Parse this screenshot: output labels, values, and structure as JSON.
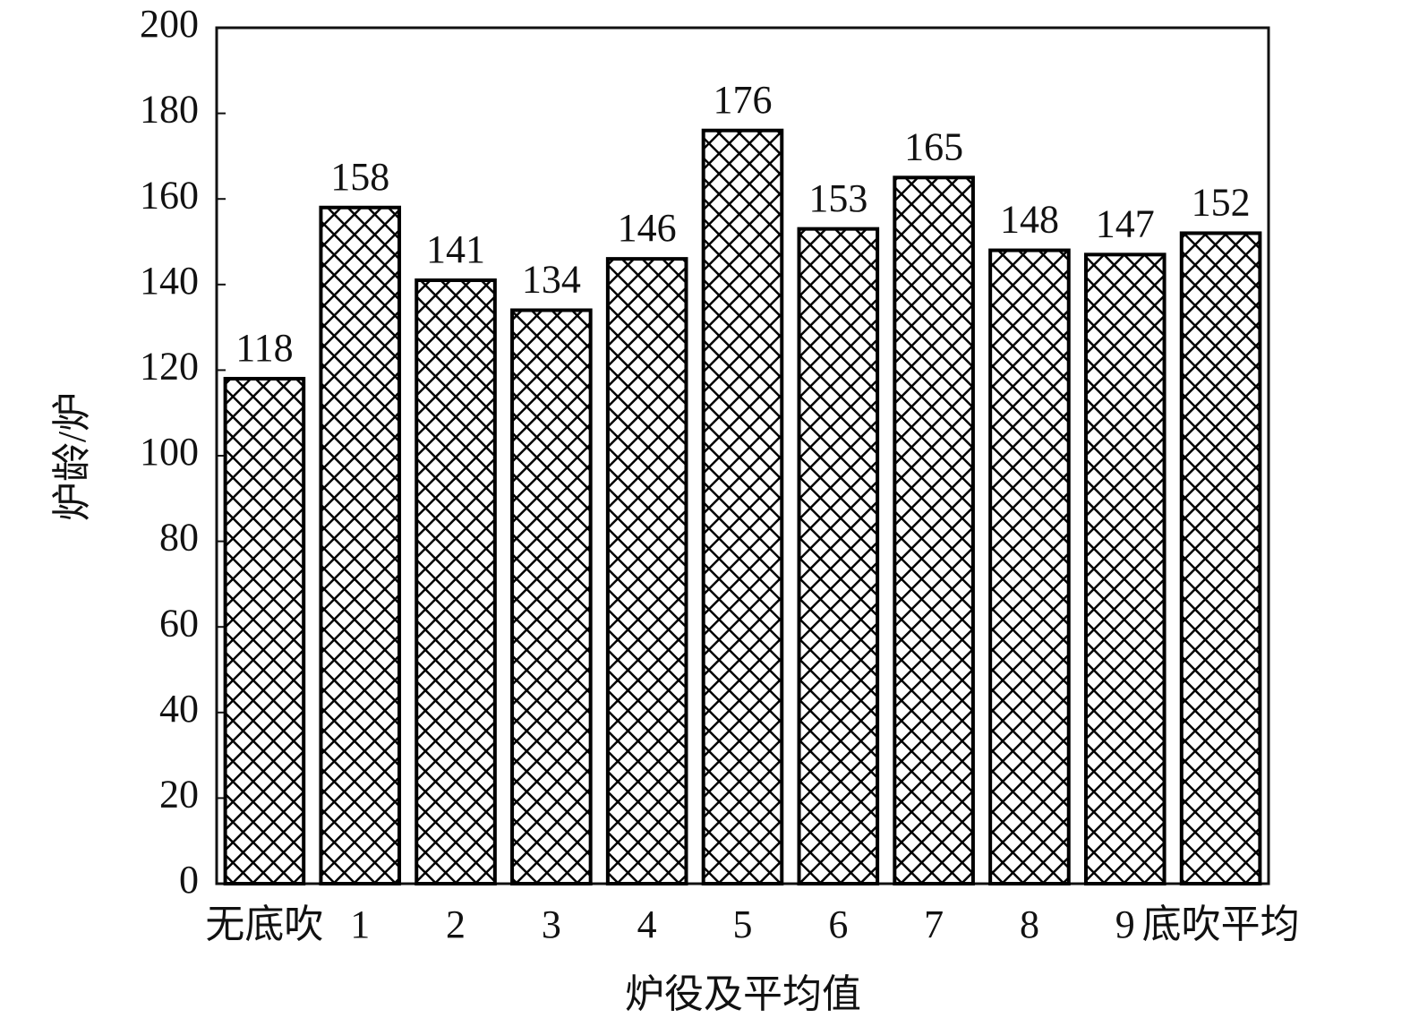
{
  "chart_data": {
    "type": "bar",
    "x_label": "炉役及平均值",
    "y_label": "炉龄/炉",
    "categories": [
      "无底吹",
      "1",
      "2",
      "3",
      "4",
      "5",
      "6",
      "7",
      "8",
      "9",
      "底吹平均"
    ],
    "values": [
      118,
      158,
      141,
      134,
      146,
      176,
      153,
      165,
      148,
      147,
      152
    ],
    "color": "#000000",
    "hatch": "crosshatch",
    "ylim": [
      0,
      200
    ],
    "yticks": [
      0,
      20,
      40,
      60,
      80,
      100,
      120,
      140,
      160,
      180,
      200
    ],
    "grid": false
  }
}
